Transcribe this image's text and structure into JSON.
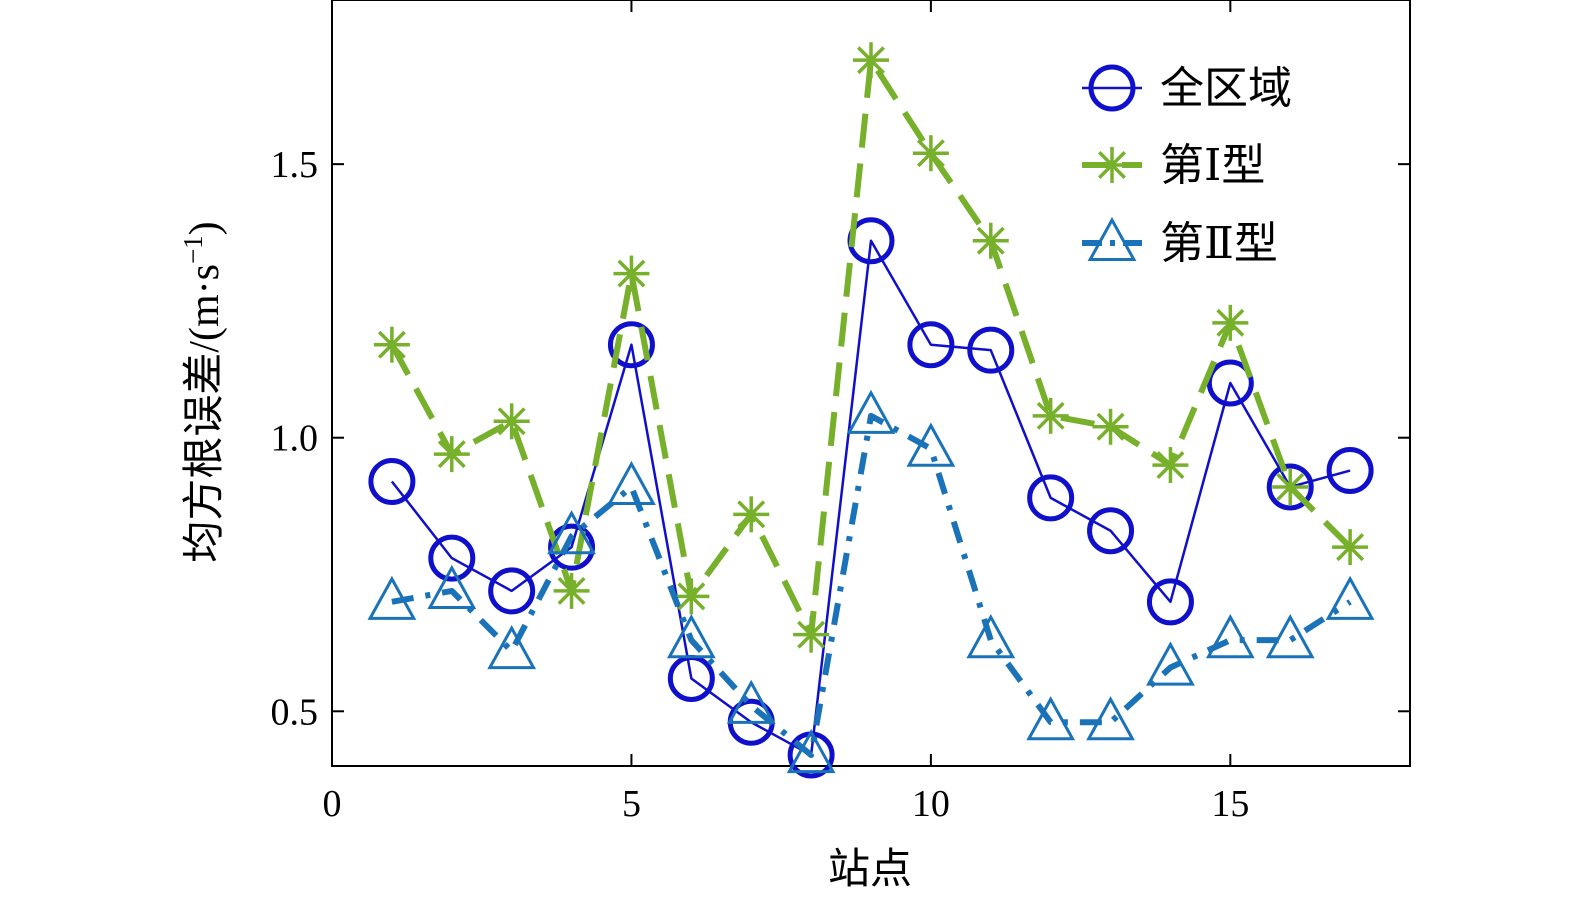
{
  "chart_data": {
    "type": "line",
    "xlabel": "站点",
    "ylabel": "均方根误差/(m·s",
    "ylabel_superscript": "−1",
    "ylabel_close": ")",
    "xlim": [
      0,
      18
    ],
    "ylim": [
      0.4,
      1.8
    ],
    "xticks": [
      0,
      5,
      10,
      15
    ],
    "xtick_labels": [
      "0",
      "5",
      "10",
      "15"
    ],
    "yticks": [
      0.5,
      1.0,
      1.5
    ],
    "ytick_labels": [
      "0.5",
      "1.0",
      "1.5"
    ],
    "legend_position": "top-right",
    "grid": false,
    "x": [
      1,
      2,
      3,
      4,
      5,
      6,
      7,
      8,
      9,
      10,
      11,
      12,
      13,
      14,
      15,
      16,
      17
    ],
    "series": [
      {
        "name": "全区域",
        "marker": "circle",
        "line": "solid",
        "color": "#1010cc",
        "values": [
          0.92,
          0.78,
          0.72,
          0.8,
          1.17,
          0.56,
          0.48,
          0.42,
          1.36,
          1.17,
          1.16,
          0.89,
          0.83,
          0.7,
          1.1,
          0.91,
          0.94
        ]
      },
      {
        "name": "第Ⅰ型",
        "marker": "asterisk",
        "line": "dashed",
        "color": "#77b02a",
        "values": [
          1.17,
          0.97,
          1.03,
          0.72,
          1.3,
          0.71,
          0.86,
          0.64,
          1.69,
          1.52,
          1.36,
          1.04,
          1.02,
          0.95,
          1.21,
          0.91,
          0.8
        ]
      },
      {
        "name": "第Ⅱ型",
        "marker": "triangle",
        "line": "dashdot",
        "color": "#1a73b8",
        "values": [
          0.7,
          0.72,
          0.61,
          0.82,
          0.91,
          0.63,
          0.51,
          0.42,
          1.04,
          0.98,
          0.63,
          0.48,
          0.48,
          0.58,
          0.63,
          0.63,
          0.7
        ]
      }
    ]
  }
}
